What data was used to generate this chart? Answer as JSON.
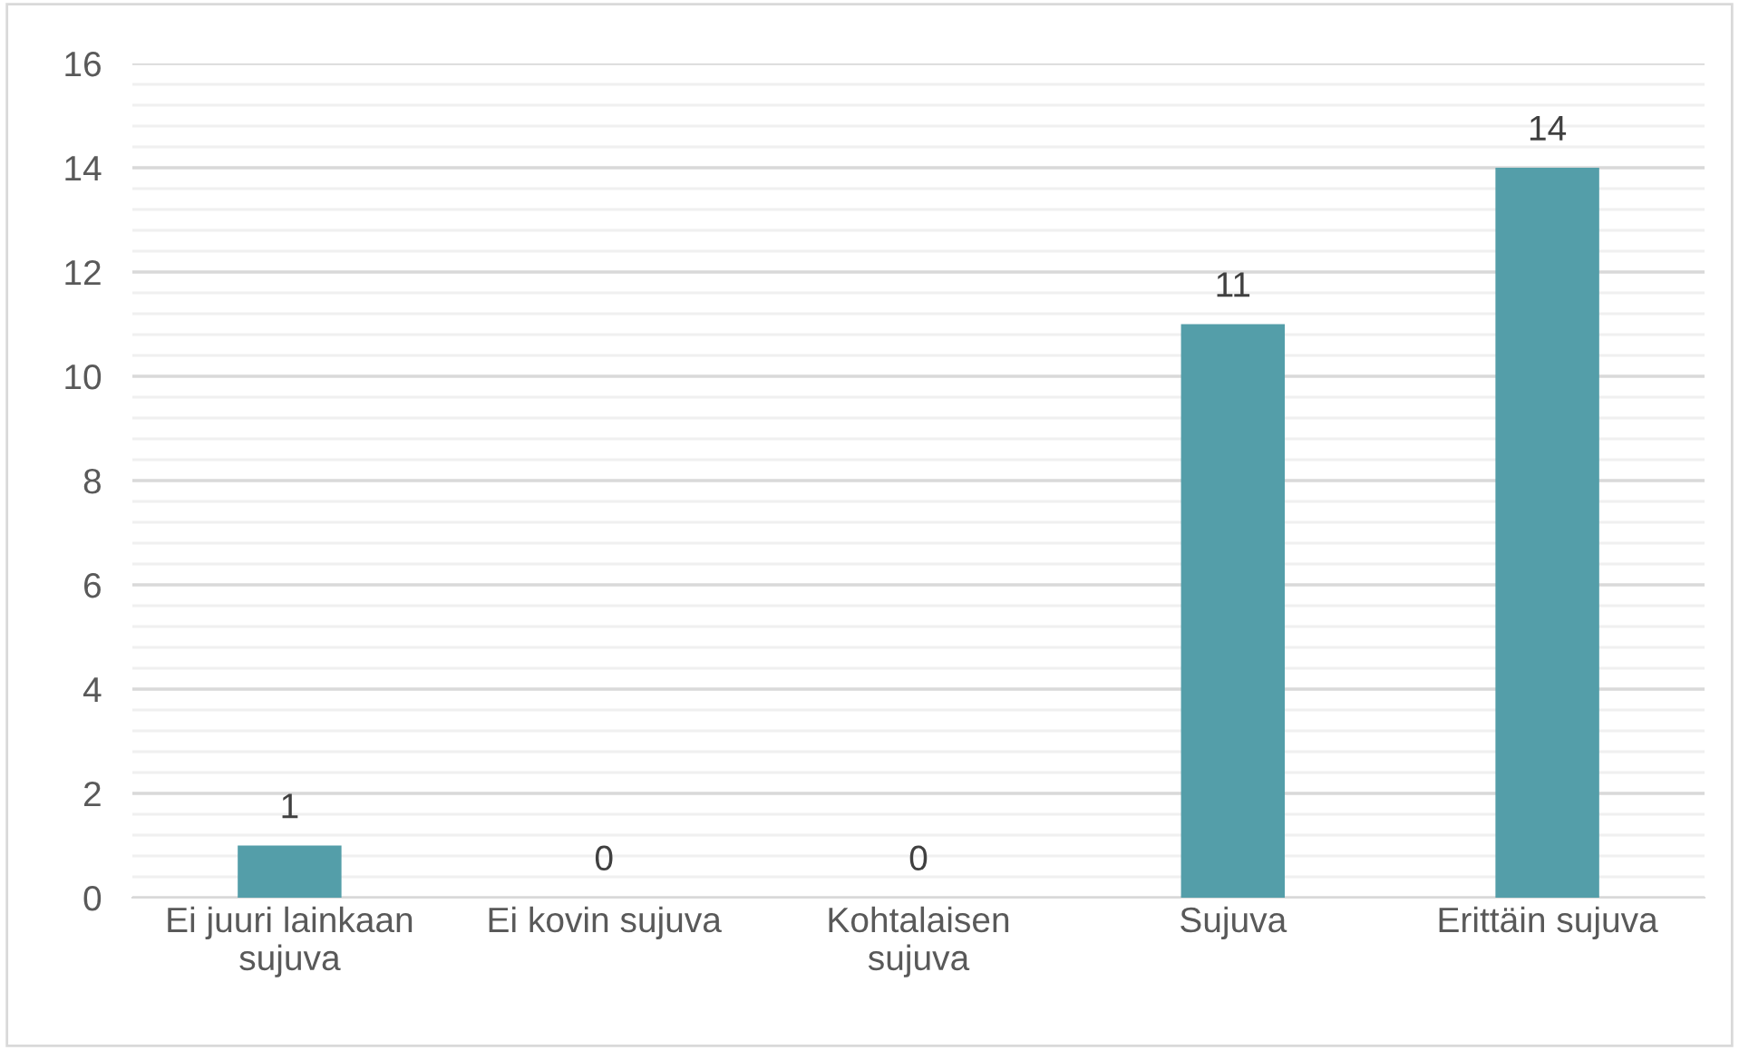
{
  "chart_data": {
    "type": "bar",
    "categories": [
      "Ei juuri lainkaan sujuva",
      "Ei kovin sujuva",
      "Kohtalaisen sujuva",
      "Sujuva",
      "Erittäin sujuva"
    ],
    "values": [
      1,
      0,
      0,
      11,
      14
    ],
    "color": "#549ea9",
    "ylim": [
      0,
      16
    ],
    "yticks": [
      0,
      2,
      4,
      6,
      8,
      10,
      12,
      14,
      16
    ],
    "grid": "y",
    "data_labels": true
  }
}
